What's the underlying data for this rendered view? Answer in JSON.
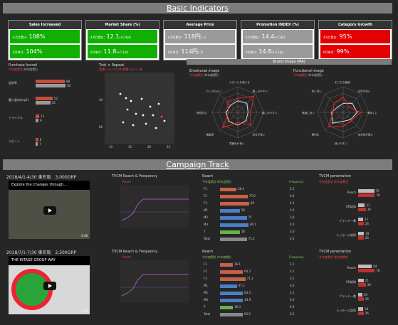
{
  "sections": {
    "basic": "Basic Indicators",
    "campaign": "Campaign Track"
  },
  "kpis": [
    {
      "title": "Sales Increased",
      "r1_label": "4-6月累計：",
      "r1_value": "108%",
      "r1_sub": "",
      "r1_color": "green",
      "r2_label": "6月単月：",
      "r2_value": "104%",
      "r2_sub": "",
      "r2_color": "green"
    },
    {
      "title": "Market Share (%)",
      "r1_label": "4-6月累計：",
      "r1_value": "12.1",
      "r1_sub": "(+0.4pt)",
      "r1_color": "green",
      "r2_label": "6月単月：",
      "r2_value": "11.8",
      "r2_sub": "(+0.1pt)",
      "r2_color": "green"
    },
    {
      "title": "Average Price",
      "r1_label": "4-6月累計：",
      "r1_value": "118円",
      "r1_sub": "(-1)",
      "r1_color": "gray",
      "r2_label": "6月単月：",
      "r2_value": "114円",
      "r2_sub": "(-1)",
      "r2_color": "gray"
    },
    {
      "title": "Promotion INDEX (%)",
      "r1_label": "4-6月累計：",
      "r1_value": "14.4",
      "r1_sub": "(-0.2pt)",
      "r1_color": "gray",
      "r2_label": "6月単月：",
      "r2_value": "14.8",
      "r2_sub": "(+0.1pt)",
      "r2_color": "gray"
    },
    {
      "title": "Category Growth",
      "r1_label": "4-6月累計：",
      "r1_value": "95%",
      "r1_sub": "",
      "r1_color": "red",
      "r2_label": "6月単月：",
      "r2_value": "99%",
      "r2_sub": "",
      "r2_color": "red"
    }
  ],
  "funnel": {
    "title": "Purchase funnel",
    "legend_a": "今年度累計",
    "legend_b": "昨年度累計",
    "rows": [
      {
        "label": "認知率",
        "a": 89,
        "b": 92
      },
      {
        "label": "購入意向(top2)",
        "a": 52,
        "b": 45
      },
      {
        "label": "トライアル",
        "a": 11,
        "b": 9
      },
      {
        "label": "リピート",
        "a": 8,
        "b": 7
      }
    ]
  },
  "trial": {
    "title": "Trial × Repeat",
    "legend_a": "累積トライアル率",
    "legend_b": "累積リピート率",
    "xticks": [
      "10",
      "15",
      "20",
      "25"
    ],
    "yticks": [
      "40",
      "60"
    ]
  },
  "brand": {
    "band": "Brand Image (MA)",
    "emotional": {
      "title": "Emotional image",
      "legend_a": "今年度累計",
      "legend_b": "昨年度累計",
      "labels": [
        "スタイルを感じる",
        "親しみやすい",
        "親しみやすい",
        "気分が良い",
        "雰囲気が良い",
        "高級感",
        "個性的な",
        "センスのよい"
      ]
    },
    "functional": {
      "title": "Functional image",
      "legend_a": "今年度累計",
      "legend_b": "昨年度累計",
      "labels": [
        "手ごろな価格",
        "品質が良い",
        "美味しい",
        "安全性が高い",
        "使いやすい",
        "便利な",
        "健康に良い",
        "体に良い"
      ]
    }
  },
  "campaigns": [
    {
      "title": "2018/4/1-4/30 東名阪　3,000GRP",
      "video_caption": "Explore the Changes through...",
      "video_duration": "2:46",
      "rf_title": "TVCM Reach & Frequency",
      "rf_legend": "Reach",
      "reach_title": "Reach",
      "reach_legend": "今年度累計 昨年度累計",
      "freq_label": "Frequency",
      "rows": [
        {
          "label": "F1",
          "value": 46.4,
          "freq": "3.1"
        },
        {
          "label": "F2",
          "value": 77.6,
          "freq": "4.6"
        },
        {
          "label": "F3",
          "value": 82.0,
          "freq": "4.1"
        },
        {
          "label": "M1",
          "value": 56.0,
          "freq": "2.6"
        },
        {
          "label": "M2",
          "value": 75.0,
          "freq": "3.0"
        },
        {
          "label": "M3",
          "value": 80.1,
          "freq": "4.0"
        },
        {
          "label": "T",
          "value": 56.0,
          "freq": "3.0"
        },
        {
          "label": "Total",
          "value": 75.2,
          "freq": "3.5"
        }
      ],
      "pen_title": "TVCM penetration",
      "pen_legend": "今年度累計 昨年度累計",
      "pen_rows": [
        {
          "label": "Reach",
          "a": 75,
          "b": 78
        },
        {
          "label": "CM認知",
          "a": 31,
          "b": 36
        },
        {
          "label": "ブランド一貫",
          "a": 23,
          "b": 26
        },
        {
          "label": "メッセージ認知",
          "a": 28,
          "b": 26
        }
      ]
    },
    {
      "title": "2018/7/1-7/30 東名阪　2,500GRP",
      "video_caption": "THE INTAGE GROUP WAY",
      "video_duration": "3:42",
      "rf_title": "TVCM Reach & Frequency",
      "rf_legend": "Reach",
      "reach_title": "Reach",
      "reach_legend": "今年度累計 昨年度累計",
      "freq_label": "Frequency",
      "rows": [
        {
          "label": "F1",
          "value": 36.1,
          "freq": "3.1"
        },
        {
          "label": "F2",
          "value": 64.3,
          "freq": "3.2"
        },
        {
          "label": "F3",
          "value": 71.3,
          "freq": "3.5"
        },
        {
          "label": "M1",
          "value": 47.3,
          "freq": "3.0"
        },
        {
          "label": "M2",
          "value": 64.3,
          "freq": "3.1"
        },
        {
          "label": "M3",
          "value": 64.9,
          "freq": "3.0"
        },
        {
          "label": "T",
          "value": 36.3,
          "freq": "2.9"
        },
        {
          "label": "Total",
          "value": 63.9,
          "freq": "3.2"
        }
      ],
      "pen_title": "TVCM penetration",
      "pen_legend": "今年度累計 昨年度累計",
      "pen_rows": [
        {
          "label": "Reach",
          "a": 64,
          "b": 78
        },
        {
          "label": "CM認知",
          "a": 25,
          "b": 36
        },
        {
          "label": "ブランド一貫",
          "a": 19,
          "b": 26
        },
        {
          "label": "メッセージ認知",
          "a": 24,
          "b": 26
        }
      ]
    }
  ]
}
